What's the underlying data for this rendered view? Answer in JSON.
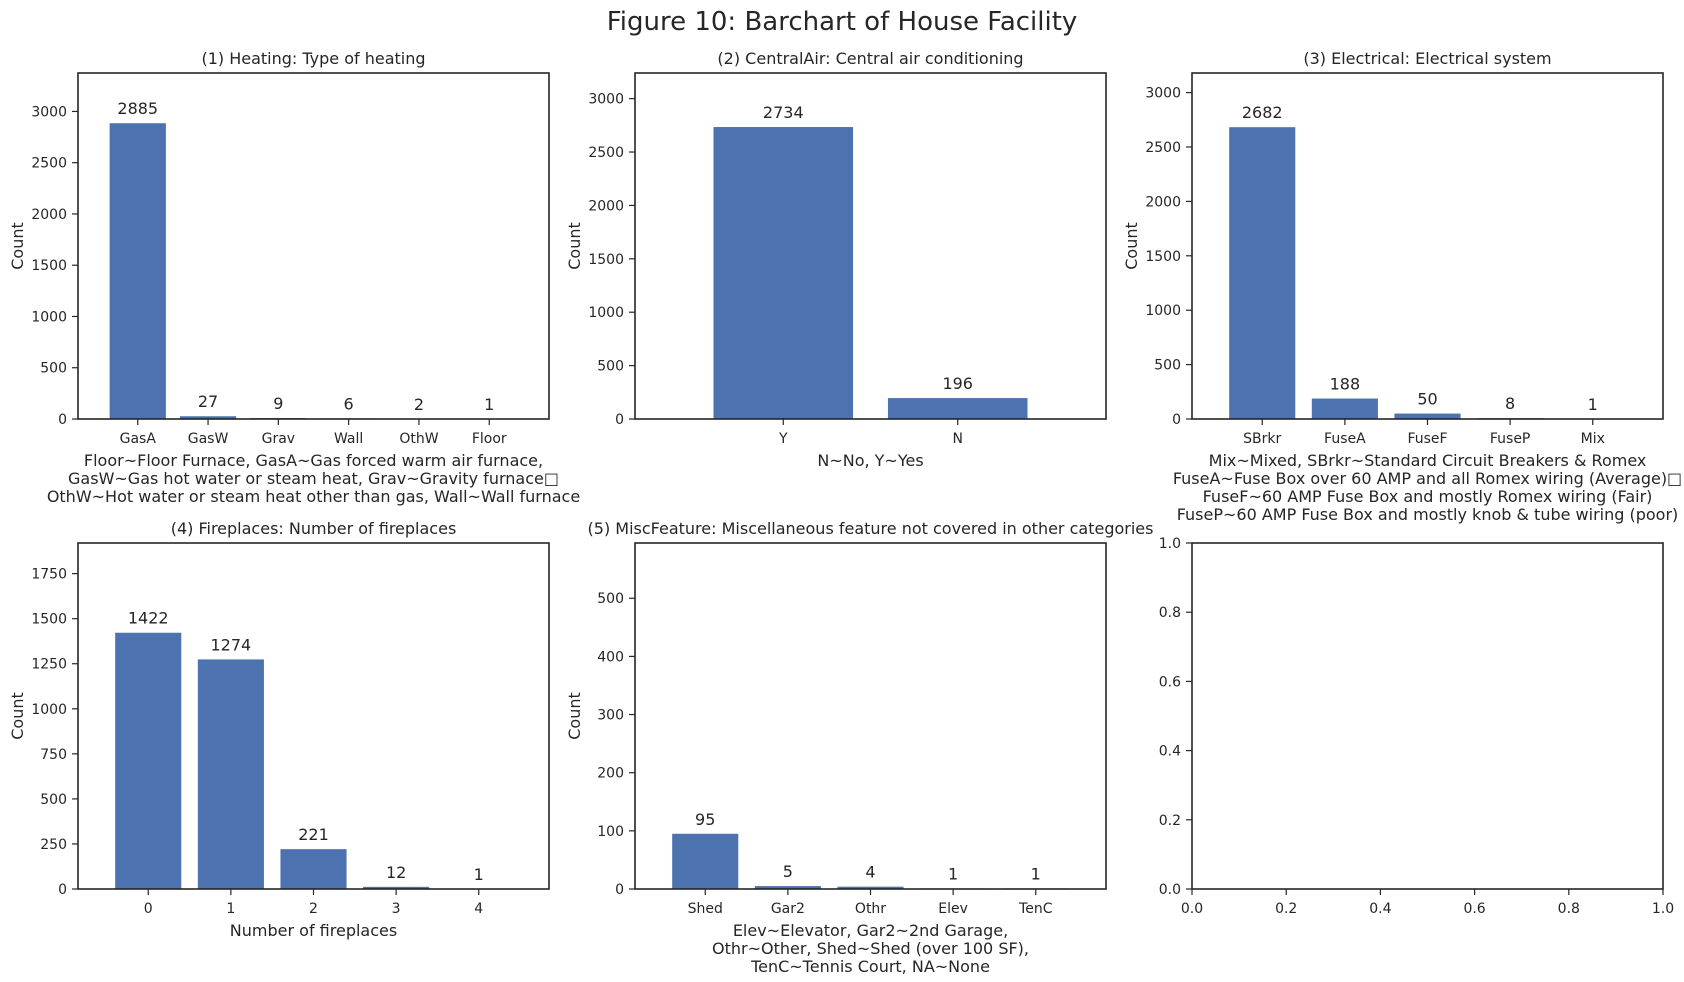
{
  "title": "Figure 10: Barchart of House Facility",
  "colors": {
    "bar": "#4c72b0"
  },
  "chart_data": [
    {
      "type": "bar",
      "title": "(1) Heating: Type of heating",
      "categories": [
        "GasA",
        "GasW",
        "Grav",
        "Wall",
        "OthW",
        "Floor"
      ],
      "values": [
        2885,
        27,
        9,
        6,
        2,
        1
      ],
      "ylabel": "Count",
      "xlabel_lines": [
        "Floor~Floor Furnace, GasA~Gas forced warm air furnace,",
        "GasW~Gas hot water or steam heat, Grav~Gravity furnace□",
        "OthW~Hot water or steam heat other than gas, Wall~Wall furnace"
      ],
      "ylim": [
        0,
        3375
      ],
      "yticks": [
        0,
        500,
        1000,
        1500,
        2000,
        2500,
        3000
      ]
    },
    {
      "type": "bar",
      "title": "(2) CentralAir: Central air conditioning",
      "categories": [
        "Y",
        "N"
      ],
      "values": [
        2734,
        196
      ],
      "ylabel": "Count",
      "xlabel_lines": [
        "N~No, Y~Yes"
      ],
      "ylim": [
        0,
        3240
      ],
      "yticks": [
        0,
        500,
        1000,
        1500,
        2000,
        2500,
        3000
      ]
    },
    {
      "type": "bar",
      "title": "(3) Electrical: Electrical system",
      "categories": [
        "SBrkr",
        "FuseA",
        "FuseF",
        "FuseP",
        "Mix"
      ],
      "values": [
        2682,
        188,
        50,
        8,
        1
      ],
      "ylabel": "Count",
      "xlabel_lines": [
        "Mix~Mixed, SBrkr~Standard Circuit Breakers & Romex",
        "FuseA~Fuse Box over 60 AMP and all Romex wiring (Average)□",
        "FuseF~60 AMP Fuse Box and mostly Romex wiring (Fair)",
        "FuseP~60 AMP Fuse Box and mostly knob & tube wiring (poor)"
      ],
      "ylim": [
        0,
        3180
      ],
      "yticks": [
        0,
        500,
        1000,
        1500,
        2000,
        2500,
        3000
      ]
    },
    {
      "type": "bar",
      "title": "(4) Fireplaces: Number of fireplaces",
      "categories": [
        "0",
        "1",
        "2",
        "3",
        "4"
      ],
      "values": [
        1422,
        1274,
        221,
        12,
        1
      ],
      "ylabel": "Count",
      "xlabel_lines": [
        "Number of fireplaces"
      ],
      "ylim": [
        0,
        1920
      ],
      "yticks": [
        0,
        250,
        500,
        750,
        1000,
        1250,
        1500,
        1750
      ]
    },
    {
      "type": "bar",
      "title": "(5) MiscFeature: Miscellaneous feature not covered in other categories",
      "categories": [
        "Shed",
        "Gar2",
        "Othr",
        "Elev",
        "TenC"
      ],
      "values": [
        95,
        5,
        4,
        1,
        1
      ],
      "ylabel": "Count",
      "xlabel_lines": [
        "Elev~Elevator, Gar2~2nd Garage,",
        "Othr~Other, Shed~Shed (over 100 SF),",
        "TenC~Tennis Court, NA~None"
      ],
      "ylim": [
        0,
        595
      ],
      "yticks": [
        0,
        100,
        200,
        300,
        400,
        500
      ]
    },
    {
      "type": "bar",
      "title": "",
      "categories": [],
      "values": [],
      "xlim": [
        0,
        1
      ],
      "ylim": [
        0,
        1
      ],
      "xticks": [
        "0.0",
        "0.2",
        "0.4",
        "0.6",
        "0.8",
        "1.0"
      ],
      "yticks": [
        "0.0",
        "0.2",
        "0.4",
        "0.6",
        "0.8",
        "1.0"
      ]
    }
  ]
}
